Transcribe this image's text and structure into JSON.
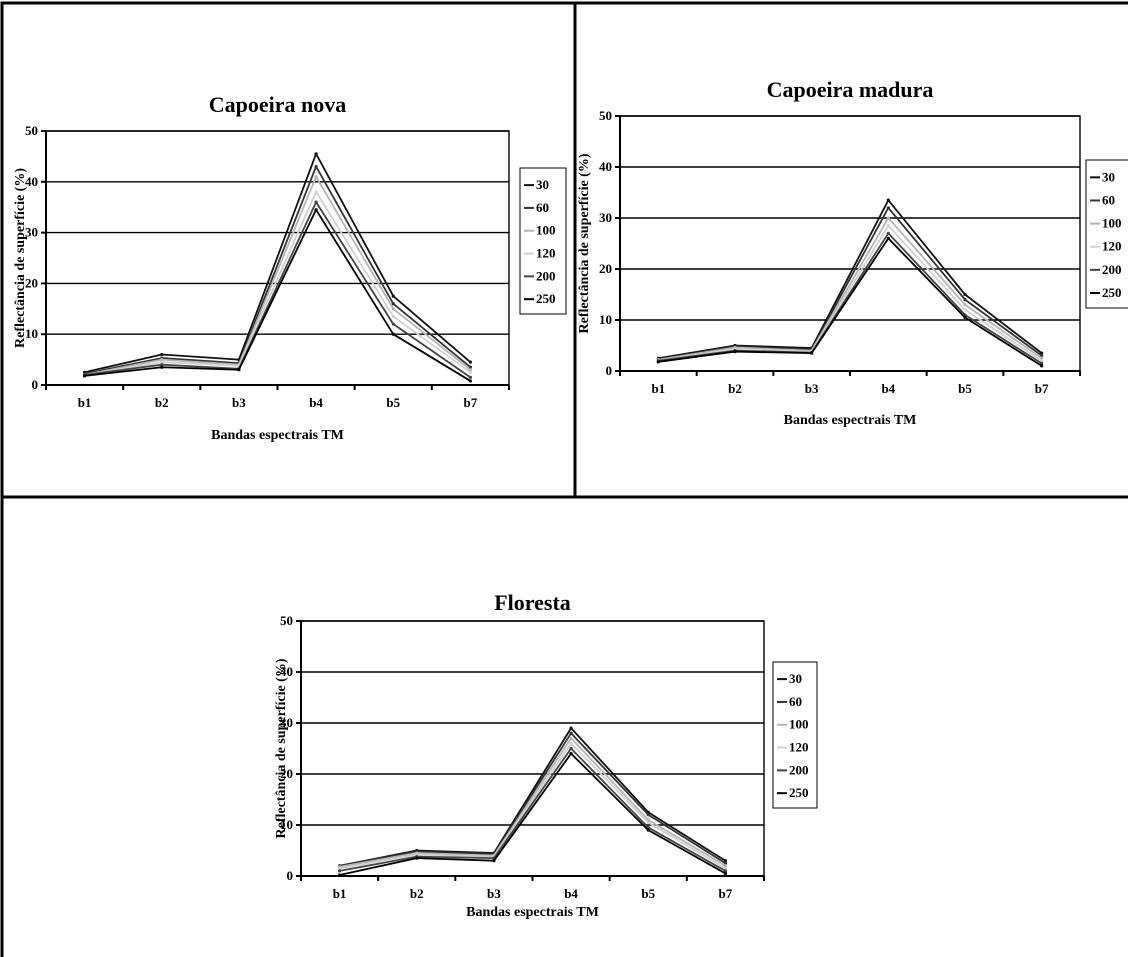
{
  "chart_data": [
    {
      "type": "line",
      "title": "Capoeira nova",
      "xlabel": "Bandas espectrais TM",
      "ylabel": "Reflectância de superfície (%)",
      "categories": [
        "b1",
        "b2",
        "b3",
        "b4",
        "b5",
        "b7"
      ],
      "ylim": [
        0,
        50
      ],
      "yticks": [
        "0",
        "10",
        "20",
        "30",
        "40",
        "50"
      ],
      "grid": true,
      "legend_position": "right",
      "series": [
        {
          "name": "30",
          "values": [
            2.5,
            6.0,
            5.0,
            45.5,
            17.5,
            4.5
          ],
          "color": "#111111"
        },
        {
          "name": "60",
          "values": [
            2.2,
            5.3,
            4.3,
            43.0,
            16.0,
            3.5
          ],
          "color": "#333333"
        },
        {
          "name": "100",
          "values": [
            2.0,
            5.0,
            4.0,
            41.0,
            15.0,
            3.0
          ],
          "color": "#b5b5b5"
        },
        {
          "name": "120",
          "values": [
            2.0,
            4.5,
            3.8,
            38.0,
            13.5,
            2.5
          ],
          "color": "#d0d0d0"
        },
        {
          "name": "200",
          "values": [
            2.0,
            4.0,
            3.2,
            36.0,
            12.0,
            1.5
          ],
          "color": "#444444"
        },
        {
          "name": "250",
          "values": [
            1.8,
            3.5,
            3.0,
            34.5,
            10.0,
            0.8
          ],
          "color": "#000000"
        }
      ]
    },
    {
      "type": "line",
      "title": "Capoeira madura",
      "xlabel": "Bandas espectrais TM",
      "ylabel": "Reflectância de superfície (%)",
      "categories": [
        "b1",
        "b2",
        "b3",
        "b4",
        "b5",
        "b7"
      ],
      "ylim": [
        0,
        50
      ],
      "yticks": [
        "0",
        "10",
        "20",
        "30",
        "40",
        "50"
      ],
      "grid": true,
      "legend_position": "right",
      "series": [
        {
          "name": "30",
          "values": [
            2.5,
            5.0,
            4.5,
            33.5,
            15.0,
            3.5
          ],
          "color": "#111111"
        },
        {
          "name": "60",
          "values": [
            2.3,
            4.8,
            4.2,
            32.0,
            14.0,
            3.0
          ],
          "color": "#333333"
        },
        {
          "name": "100",
          "values": [
            2.2,
            4.6,
            4.0,
            30.0,
            13.0,
            2.5
          ],
          "color": "#b5b5b5"
        },
        {
          "name": "120",
          "values": [
            2.0,
            4.3,
            3.8,
            28.5,
            12.0,
            2.0
          ],
          "color": "#d0d0d0"
        },
        {
          "name": "200",
          "values": [
            2.0,
            4.0,
            3.6,
            27.0,
            11.0,
            1.5
          ],
          "color": "#444444"
        },
        {
          "name": "250",
          "values": [
            1.8,
            3.8,
            3.5,
            26.0,
            10.5,
            1.0
          ],
          "color": "#000000"
        }
      ]
    },
    {
      "type": "line",
      "title": "Floresta",
      "xlabel": "Bandas espectrais TM",
      "ylabel": "Reflectância de superfície (%)",
      "categories": [
        "b1",
        "b2",
        "b3",
        "b4",
        "b5",
        "b7"
      ],
      "ylim": [
        0,
        50
      ],
      "yticks": [
        "0",
        "10",
        "20",
        "30",
        "40",
        "50"
      ],
      "grid": true,
      "legend_position": "right",
      "series": [
        {
          "name": "30",
          "values": [
            2.0,
            5.0,
            4.5,
            29.0,
            12.5,
            3.0
          ],
          "color": "#111111"
        },
        {
          "name": "60",
          "values": [
            2.0,
            4.8,
            4.3,
            28.0,
            12.0,
            2.5
          ],
          "color": "#333333"
        },
        {
          "name": "100",
          "values": [
            1.8,
            4.5,
            4.0,
            27.0,
            11.0,
            2.0
          ],
          "color": "#b5b5b5"
        },
        {
          "name": "120",
          "values": [
            1.5,
            4.2,
            3.8,
            26.0,
            10.5,
            1.5
          ],
          "color": "#d0d0d0"
        },
        {
          "name": "200",
          "values": [
            1.0,
            3.8,
            3.5,
            25.0,
            9.5,
            1.0
          ],
          "color": "#444444"
        },
        {
          "name": "250",
          "values": [
            0.2,
            3.5,
            3.0,
            24.0,
            9.0,
            0.5
          ],
          "color": "#000000"
        }
      ]
    }
  ]
}
